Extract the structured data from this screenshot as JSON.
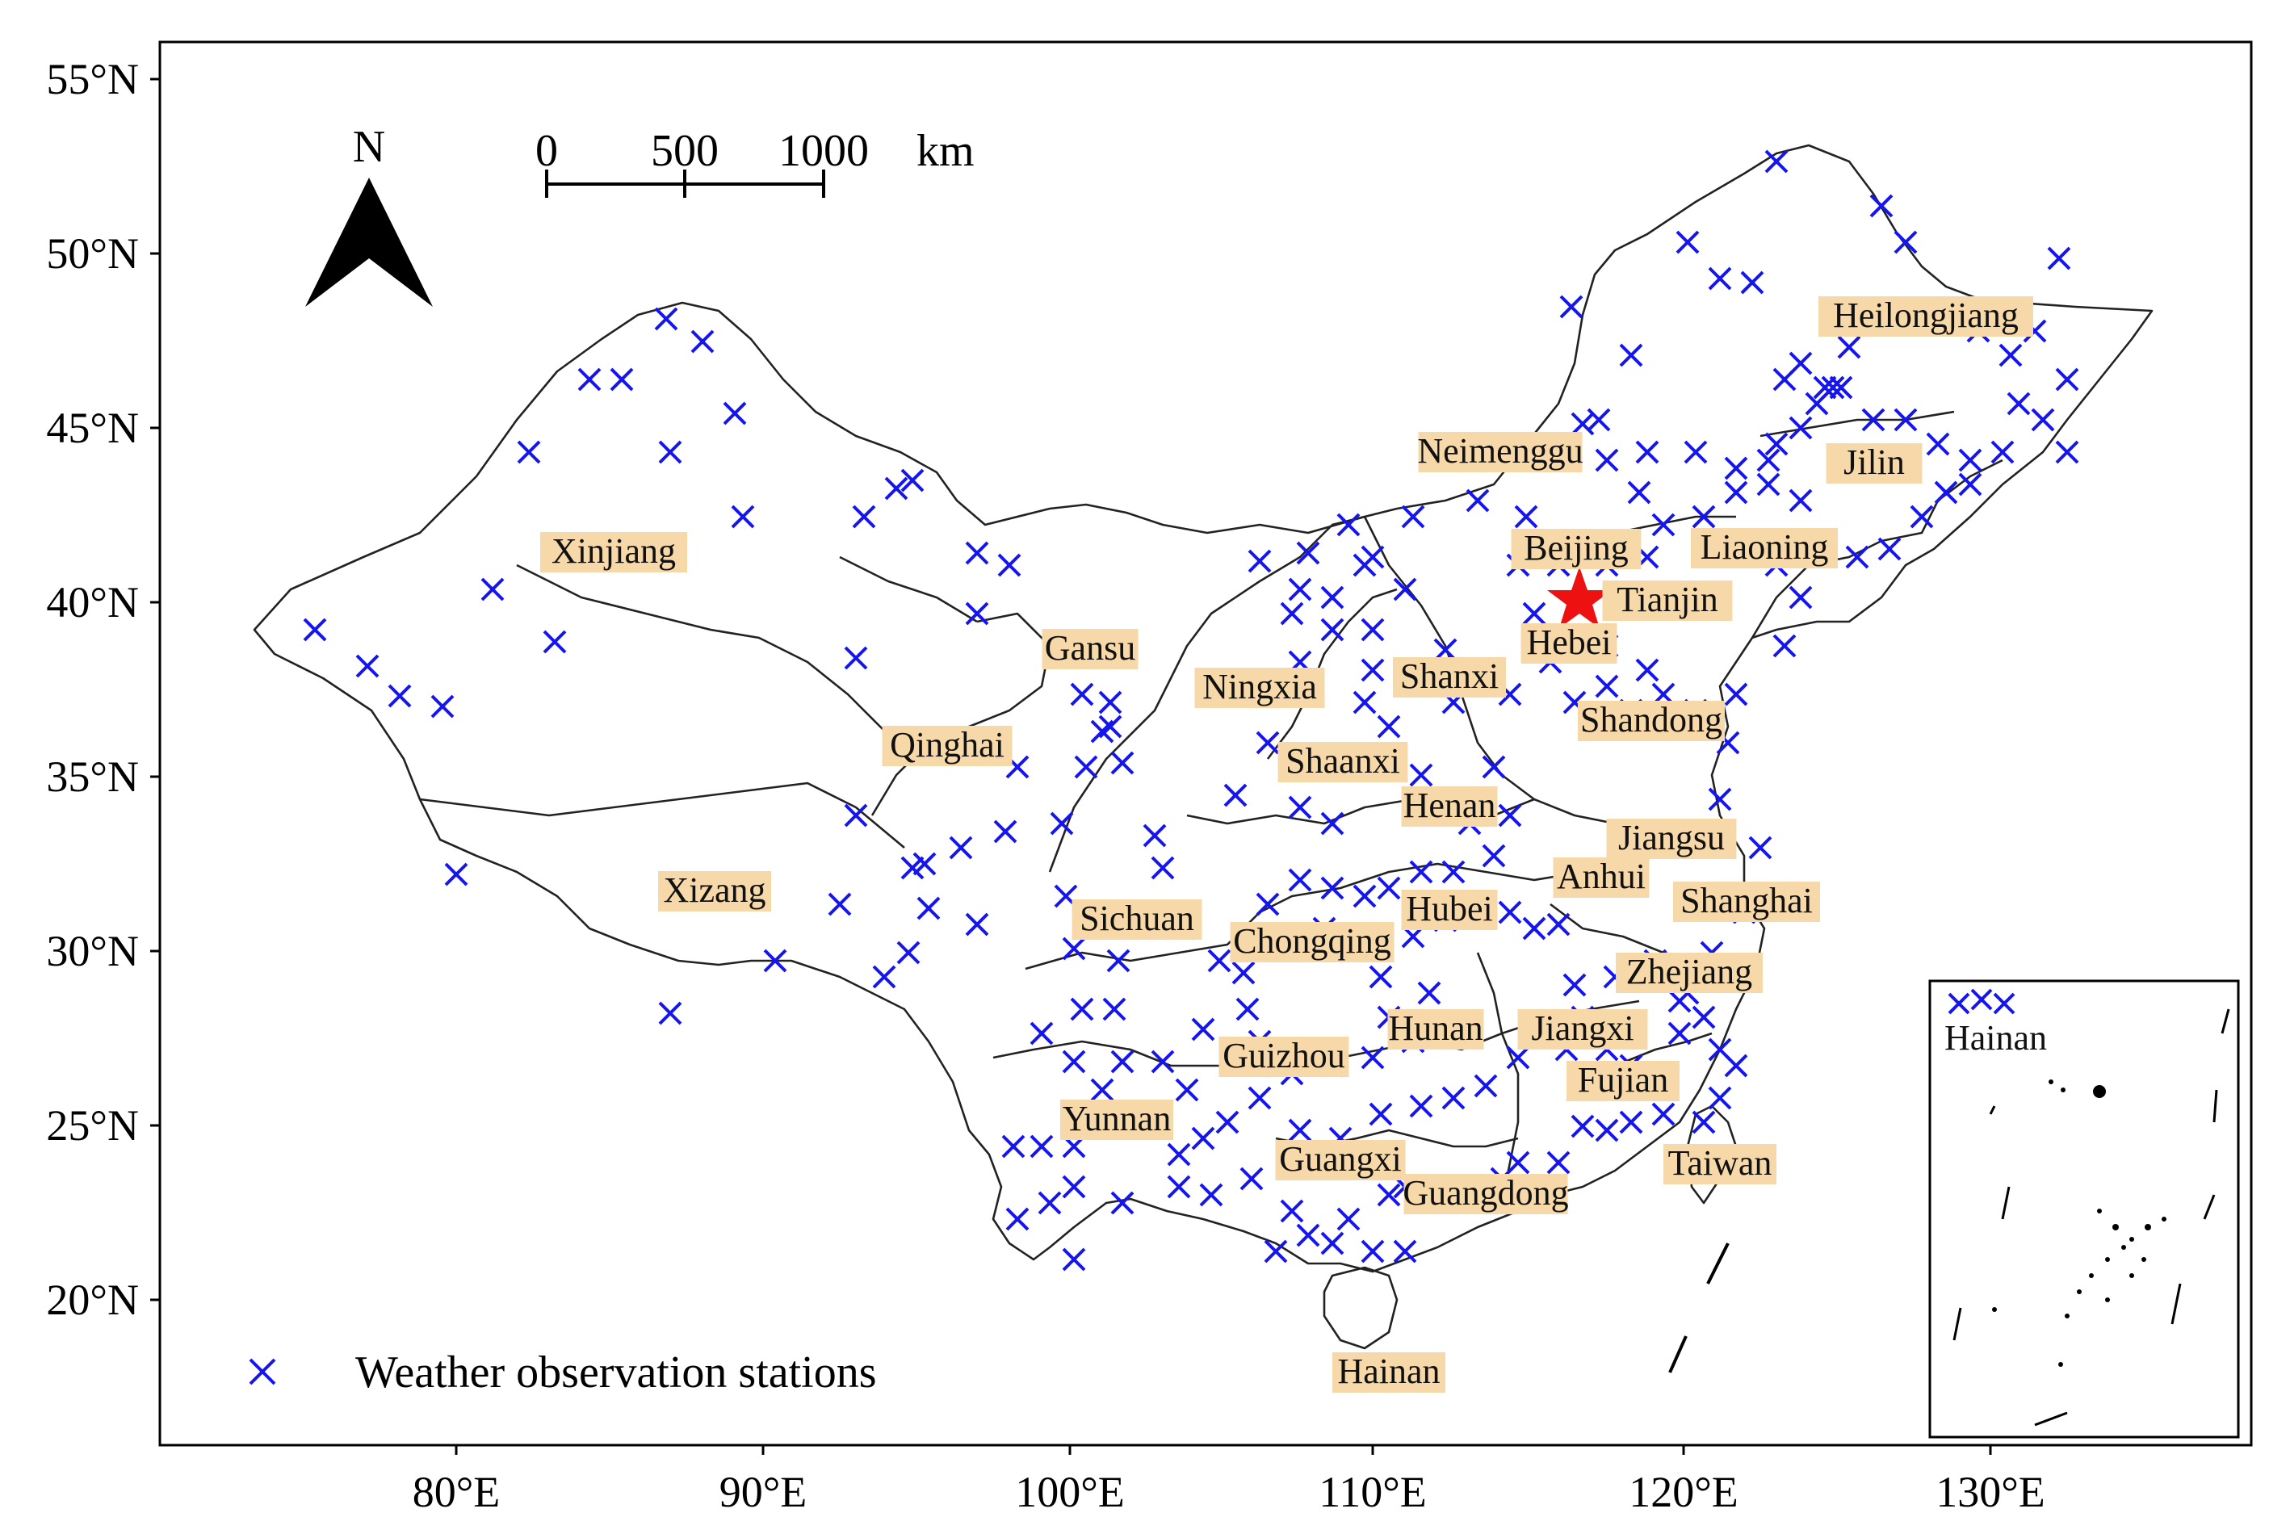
{
  "map": {
    "lat_ticks": [
      "55°N",
      "50°N",
      "45°N",
      "40°N",
      "35°N",
      "30°N",
      "25°N",
      "20°N"
    ],
    "lon_ticks": [
      "80°E",
      "90°E",
      "100°E",
      "110°E",
      "120°E",
      "130°E"
    ],
    "north_arrow_label": "N",
    "scale_bar": {
      "labels": [
        "0",
        "500",
        "1000"
      ],
      "unit": "km"
    },
    "legend": {
      "marker": "×",
      "label": "Weather observation stations"
    },
    "marked_city": "Beijing",
    "inset_label": "Hainan",
    "colors": {
      "station": "#1515ee",
      "star": "#ee1111",
      "label_bg": "#f7d8a8",
      "border": "#222222"
    },
    "provinces": [
      "Xinjiang",
      "Xizang",
      "Qinghai",
      "Gansu",
      "Ningxia",
      "Neimenggu",
      "Heilongjiang",
      "Jilin",
      "Liaoning",
      "Beijing",
      "Tianjin",
      "Hebei",
      "Shanxi",
      "Shandong",
      "Shaanxi",
      "Henan",
      "Jiangsu",
      "Anhui",
      "Shanghai",
      "Hubei",
      "Sichuan",
      "Chongqing",
      "Zhejiang",
      "Hunan",
      "Jiangxi",
      "Guizhou",
      "Fujian",
      "Yunnan",
      "Guangxi",
      "Guangdong",
      "Taiwan",
      "Hainan"
    ]
  }
}
